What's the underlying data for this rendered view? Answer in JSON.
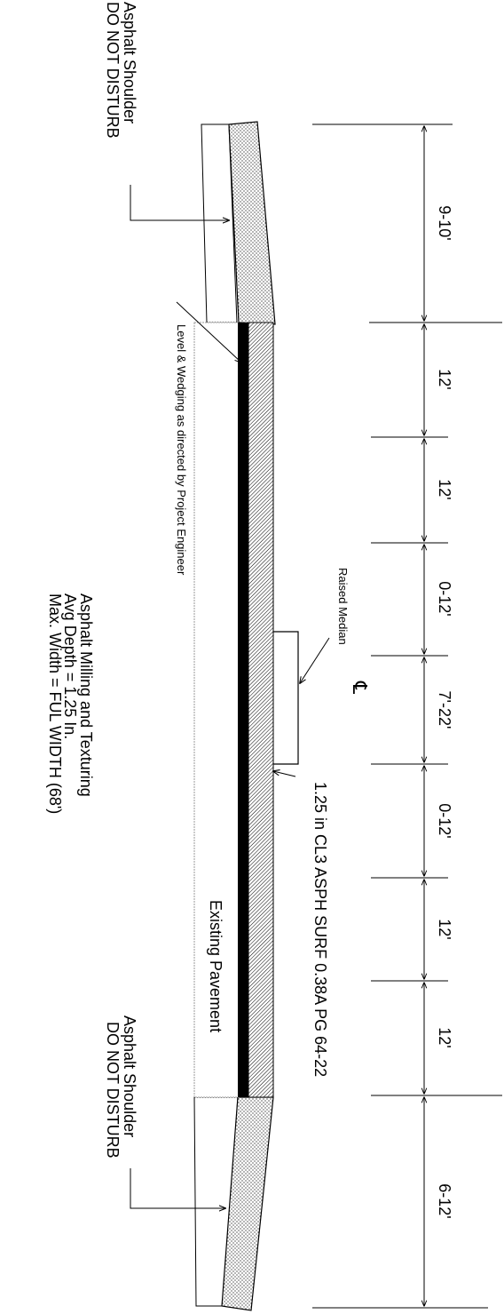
{
  "shoulder_top": {
    "line1": "Asphalt Shoulder",
    "line2": "DO NOT DISTURB"
  },
  "shoulder_bottom": {
    "line1": "Asphalt Shoulder",
    "line2": "DO NOT DISTURB"
  },
  "level_wedging": "Level & Wedging as directed by Project Engineer",
  "milling": {
    "line1": "Asphalt Milling and Texturing",
    "line2": "Avg Depth = 1.25 In.",
    "line3": "Max. Width = FUL WIDTH (68')"
  },
  "existing_pavement": "Existing Pavement",
  "surface_course": "1.25 in CL3 ASPH SURF 0.38A PG 64-22",
  "raised_median": "Raised Median",
  "centerline_symbol": "℄",
  "dimensions": [
    "9-10'",
    "12'",
    "12'",
    "0-12'",
    "7'-22'",
    "0-12'",
    "12'",
    "12'",
    "6-12'"
  ],
  "colors": {
    "line": "#000000",
    "pavement_outline": "#9a9a9a"
  }
}
